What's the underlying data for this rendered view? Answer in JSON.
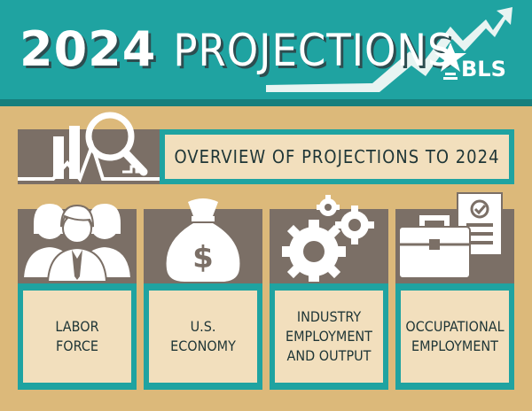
{
  "header": {
    "title_year": "2024",
    "title_word": "PROJECTIONS",
    "logo_text": "BLS",
    "logo_icon": "bls-star-logo-icon"
  },
  "overview": {
    "label": "OVERVIEW OF PROJECTIONS TO 2024",
    "icon": "analysis-magnifier-icon"
  },
  "cards": [
    {
      "icon": "people-group-icon",
      "line1": "LABOR",
      "line2": "FORCE",
      "line3": ""
    },
    {
      "icon": "money-bag-icon",
      "line1": "U.S.",
      "line2": "ECONOMY",
      "line3": ""
    },
    {
      "icon": "gears-icon",
      "line1": "INDUSTRY",
      "line2": "EMPLOYMENT",
      "line3": "AND OUTPUT"
    },
    {
      "icon": "briefcase-checklist-icon",
      "line1": "OCCUPATIONAL",
      "line2": "EMPLOYMENT",
      "line3": ""
    }
  ],
  "colors": {
    "teal": "#1fa3a1",
    "tan": "#dcb97a",
    "cream": "#f2dfbd",
    "gray": "#7b6f66",
    "text": "#1e3536"
  }
}
